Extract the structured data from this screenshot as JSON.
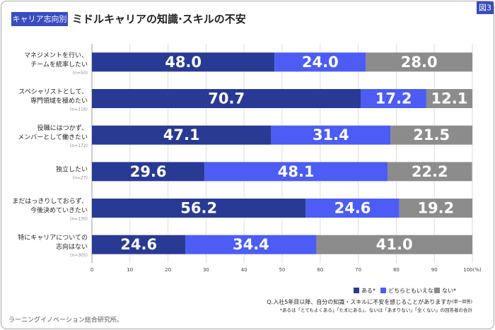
{
  "chart_data": {
    "type": "stacked-barh",
    "tag": "キャリア志向別",
    "title": "ミドルキャリアの知識·スキルの不安",
    "figure_label": "図3",
    "categories": [
      [
        "マネジメントを行い、",
        "チームを統率したい"
      ],
      [
        "スペシャリストとして、",
        "専門領域を極めたい"
      ],
      [
        "役職にはつかず、",
        "メンバーとして働きたい"
      ],
      [
        "独立したい"
      ],
      [
        "まだはっきりしておらず、",
        "今後決めていきたい"
      ],
      [
        "特にキャリアについての",
        "志向はない"
      ]
    ],
    "category_notes": [
      "(n=50)",
      "(n=116)",
      "(n=172)",
      "(n=27)",
      "(n=130)",
      "(n=305)"
    ],
    "series": [
      {
        "name": "ある*",
        "color": "#293a94",
        "values": [
          48.0,
          70.7,
          47.1,
          29.6,
          56.2,
          24.6
        ],
        "value_labels": [
          "48.0",
          "70.7",
          "47.1",
          "29.6",
          "56.2",
          "24.6"
        ]
      },
      {
        "name": "どちらともいえない",
        "color": "#4c5cf5",
        "values": [
          24.0,
          17.2,
          31.4,
          48.1,
          24.6,
          34.4
        ],
        "value_labels": [
          "24.0",
          "17.2",
          "31.4",
          "48.1",
          "24.6",
          "34.4"
        ]
      },
      {
        "name": "ない*",
        "color": "#8c8c8c",
        "values": [
          28.0,
          12.1,
          21.5,
          22.2,
          19.2,
          41.0
        ],
        "value_labels": [
          "28.0",
          "12.1",
          "21.5",
          "22.2",
          "19.2",
          "41.0"
        ]
      }
    ],
    "xlim": [
      0,
      100
    ],
    "xticks": [
      0,
      10,
      20,
      30,
      40,
      50,
      60,
      70,
      80,
      90,
      {
        "value": 100,
        "label": "100(%)"
      }
    ],
    "grid": true,
    "question": "Q.入社5年目以降、自分の知識・スキルに不安を感じることがありますか",
    "question_suffix": "(単一回答)",
    "footnote": "*あるは「とてもよくある」「たまにある」、ないは「あまりない」「全くない」の回答者の合計",
    "source": "ラーニングイノベーション総合研究所。"
  }
}
